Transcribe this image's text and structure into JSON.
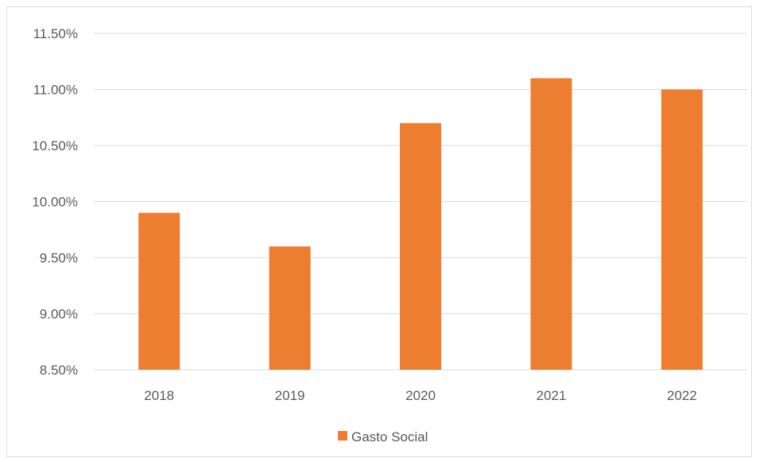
{
  "chart_data": {
    "type": "bar",
    "categories": [
      "2018",
      "2019",
      "2020",
      "2021",
      "2022"
    ],
    "series": [
      {
        "name": "Gasto Social",
        "values": [
          9.9,
          9.6,
          10.7,
          11.1,
          11.0
        ],
        "color": "#ED7D31"
      }
    ],
    "y_ticks": [
      "8.50%",
      "9.00%",
      "9.50%",
      "10.00%",
      "10.50%",
      "11.00%",
      "11.50%"
    ],
    "ylim": [
      8.5,
      11.5
    ],
    "ylabel": "",
    "xlabel": "",
    "grid": true,
    "legend_position": "bottom",
    "colors": {
      "gridline": "#d9d9d9",
      "text": "#595959"
    }
  }
}
